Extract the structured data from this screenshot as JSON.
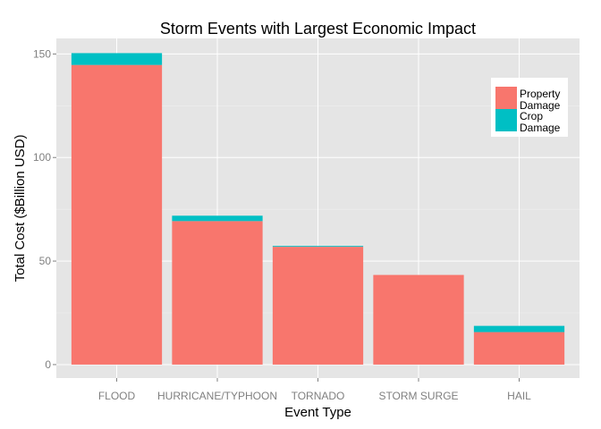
{
  "chart_data": {
    "type": "bar",
    "stacked": true,
    "title": "Storm Events with Largest Economic Impact",
    "xlabel": "Event Type",
    "ylabel": "Total Cost ($Billion USD)",
    "categories": [
      "FLOOD",
      "HURRICANE/TYPHOON",
      "TORNADO",
      "STORM SURGE",
      "HAIL"
    ],
    "series": [
      {
        "name": "Property Damage",
        "legend_lines": [
          "Property",
          "Damage"
        ],
        "color": "#f8766d",
        "values": [
          144.7,
          69.3,
          56.9,
          43.3,
          15.7
        ]
      },
      {
        "name": "Crop Damage",
        "legend_lines": [
          "Crop",
          "Damage"
        ],
        "color": "#00bfc4",
        "values": [
          5.7,
          2.6,
          0.4,
          0.0,
          3.0
        ]
      }
    ],
    "ylim": [
      -6.5,
      157.5
    ],
    "yticks": [
      0,
      50,
      100,
      150
    ],
    "grid": true,
    "legend_position": "top-right",
    "panel_background": "#e5e5e5",
    "grid_color": "#ffffff"
  }
}
